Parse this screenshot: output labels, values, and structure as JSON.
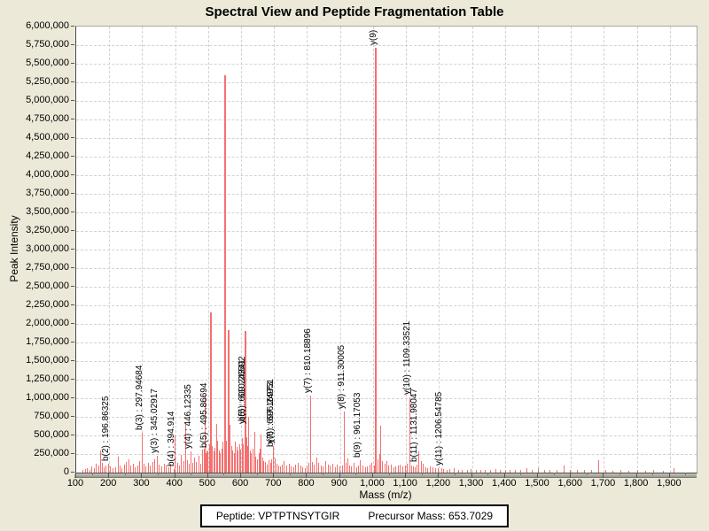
{
  "title": "Spectral View and Peptide Fragmentation Table",
  "footer": {
    "peptide_label": "Peptide: VPTPTNSYTGIR",
    "precursor_label": "Precursor Mass: 653.7029"
  },
  "chart_data": {
    "type": "bar",
    "subtype": "stick-mass-spectrum",
    "title": "Spectral View and Peptide Fragmentation Table",
    "xlabel": "Mass (m/z)",
    "ylabel": "Peak Intensity",
    "xlim": [
      100,
      1981
    ],
    "ylim": [
      0,
      6000000
    ],
    "grid": "dashed",
    "peak_color": "#f47070",
    "background_color": "#ece9d8",
    "plot_background_color": "#ffffff",
    "x_tick_labels": [
      "100",
      "200",
      "300",
      "400",
      "500",
      "600",
      "700",
      "800",
      "900",
      "1,000",
      "1,100",
      "1,200",
      "1,300",
      "1,400",
      "1,500",
      "1,600",
      "1,700",
      "1,800",
      "1,900"
    ],
    "y_tick_labels": [
      "0",
      "250,000",
      "500,000",
      "750,000",
      "1,000,000",
      "1,250,000",
      "1,500,000",
      "1,750,000",
      "2,000,000",
      "2,250,000",
      "2,500,000",
      "2,750,000",
      "3,000,000",
      "3,250,000",
      "3,500,000",
      "3,750,000",
      "4,000,000",
      "4,250,000",
      "4,500,000",
      "4,750,000",
      "5,000,000",
      "5,250,000",
      "5,500,000",
      "5,750,000",
      "6,000,000"
    ],
    "annotated_peaks": [
      {
        "label": "b(2) : 196.86325",
        "mz": 196.86325,
        "intensity": 120000
      },
      {
        "label": "b(3) : 297.94684",
        "mz": 297.94684,
        "intensity": 530000
      },
      {
        "label": "y(3) : 345.02917",
        "mz": 345.02917,
        "intensity": 230000
      },
      {
        "label": "b(4) : 394.914",
        "mz": 394.914,
        "intensity": 45000
      },
      {
        "label": "y(4) : 446.12335",
        "mz": 446.12335,
        "intensity": 290000
      },
      {
        "label": "b(5) : 495.86694",
        "mz": 495.86694,
        "intensity": 300000
      },
      {
        "label": "y(5) : 609.24341",
        "mz": 609.24341,
        "intensity": 620000
      },
      {
        "label": "b(6) : 610.26592",
        "mz": 610.26592,
        "intensity": 660000
      },
      {
        "label": "y(6) : 696.24951",
        "mz": 696.24951,
        "intensity": 360000
      },
      {
        "label": "b(7) : 697.16973",
        "mz": 697.16973,
        "intensity": 310000
      },
      {
        "label": "y(7) : 810.18896",
        "mz": 810.18896,
        "intensity": 1030000
      },
      {
        "label": "y(8) : 911.30005",
        "mz": 911.30005,
        "intensity": 820000
      },
      {
        "label": "b(9) : 961.17053",
        "mz": 961.17053,
        "intensity": 170000
      },
      {
        "label": "y(9) :",
        "mz": 1008.4,
        "intensity": 5720000
      },
      {
        "label": "y(10) : 1109.33521",
        "mz": 1109.33521,
        "intensity": 1010000
      },
      {
        "label": "b(11) : 1131.98047",
        "mz": 1131.98047,
        "intensity": 110000
      },
      {
        "label": "y(11) : 1206.54785",
        "mz": 1206.54785,
        "intensity": 55000
      }
    ],
    "unannotated_peaks": [
      [
        118,
        30000
      ],
      [
        126,
        45000
      ],
      [
        133,
        60000
      ],
      [
        139,
        35000
      ],
      [
        146,
        80000
      ],
      [
        153,
        55000
      ],
      [
        160,
        120000
      ],
      [
        166,
        90000
      ],
      [
        172,
        300000
      ],
      [
        178,
        130000
      ],
      [
        184,
        70000
      ],
      [
        190,
        95000
      ],
      [
        203,
        85000
      ],
      [
        210,
        55000
      ],
      [
        218,
        75000
      ],
      [
        226,
        210000
      ],
      [
        232,
        95000
      ],
      [
        238,
        65000
      ],
      [
        244,
        110000
      ],
      [
        250,
        140000
      ],
      [
        258,
        175000
      ],
      [
        264,
        90000
      ],
      [
        271,
        120000
      ],
      [
        278,
        75000
      ],
      [
        285,
        100000
      ],
      [
        291,
        150000
      ],
      [
        304,
        120000
      ],
      [
        310,
        85000
      ],
      [
        317,
        130000
      ],
      [
        323,
        95000
      ],
      [
        330,
        145000
      ],
      [
        337,
        180000
      ],
      [
        351,
        105000
      ],
      [
        358,
        80000
      ],
      [
        365,
        125000
      ],
      [
        372,
        95000
      ],
      [
        379,
        70000
      ],
      [
        386,
        115000
      ],
      [
        399,
        500000
      ],
      [
        405,
        130000
      ],
      [
        411,
        90000
      ],
      [
        418,
        240000
      ],
      [
        424,
        160000
      ],
      [
        430,
        650000
      ],
      [
        436,
        170000
      ],
      [
        441,
        120000
      ],
      [
        452,
        130000
      ],
      [
        458,
        200000
      ],
      [
        464,
        145000
      ],
      [
        470,
        230000
      ],
      [
        476,
        125000
      ],
      [
        481,
        310000
      ],
      [
        486,
        320000
      ],
      [
        489,
        1050000
      ],
      [
        493,
        260000
      ],
      [
        499,
        280000
      ],
      [
        503,
        380000
      ],
      [
        506,
        300000
      ],
      [
        509,
        2150000
      ],
      [
        512,
        360000
      ],
      [
        516,
        290000
      ],
      [
        520,
        330000
      ],
      [
        524,
        660000
      ],
      [
        528,
        430000
      ],
      [
        532,
        300000
      ],
      [
        536,
        260000
      ],
      [
        540,
        320000
      ],
      [
        544,
        420000
      ],
      [
        548,
        360000
      ],
      [
        551.5,
        5340000
      ],
      [
        555,
        430000
      ],
      [
        559,
        380000
      ],
      [
        563,
        1920000
      ],
      [
        566,
        640000
      ],
      [
        570,
        360000
      ],
      [
        574,
        300000
      ],
      [
        578,
        260000
      ],
      [
        582,
        420000
      ],
      [
        586,
        350000
      ],
      [
        590,
        300000
      ],
      [
        594,
        380000
      ],
      [
        598,
        310000
      ],
      [
        602,
        460000
      ],
      [
        605,
        380000
      ],
      [
        612,
        1900000
      ],
      [
        615,
        480000
      ],
      [
        618,
        360000
      ],
      [
        622,
        750000
      ],
      [
        626,
        300000
      ],
      [
        630,
        260000
      ],
      [
        634,
        320000
      ],
      [
        640,
        550000
      ],
      [
        644,
        220000
      ],
      [
        648,
        180000
      ],
      [
        653,
        260000
      ],
      [
        657,
        320000
      ],
      [
        660,
        510000
      ],
      [
        664,
        200000
      ],
      [
        668,
        160000
      ],
      [
        673,
        140000
      ],
      [
        678,
        110000
      ],
      [
        683,
        170000
      ],
      [
        688,
        130000
      ],
      [
        692,
        180000
      ],
      [
        702,
        190000
      ],
      [
        707,
        120000
      ],
      [
        712,
        100000
      ],
      [
        718,
        85000
      ],
      [
        724,
        110000
      ],
      [
        730,
        150000
      ],
      [
        737,
        95000
      ],
      [
        744,
        120000
      ],
      [
        751,
        80000
      ],
      [
        758,
        70000
      ],
      [
        765,
        110000
      ],
      [
        772,
        130000
      ],
      [
        779,
        90000
      ],
      [
        786,
        75000
      ],
      [
        793,
        60000
      ],
      [
        800,
        100000
      ],
      [
        805,
        130000
      ],
      [
        815,
        140000
      ],
      [
        821,
        110000
      ],
      [
        828,
        200000
      ],
      [
        834,
        130000
      ],
      [
        841,
        95000
      ],
      [
        848,
        85000
      ],
      [
        855,
        160000
      ],
      [
        862,
        110000
      ],
      [
        869,
        90000
      ],
      [
        877,
        120000
      ],
      [
        884,
        75000
      ],
      [
        891,
        105000
      ],
      [
        898,
        80000
      ],
      [
        905,
        95000
      ],
      [
        916,
        130000
      ],
      [
        921,
        190000
      ],
      [
        927,
        95000
      ],
      [
        934,
        85000
      ],
      [
        941,
        130000
      ],
      [
        948,
        75000
      ],
      [
        955,
        90000
      ],
      [
        968,
        95000
      ],
      [
        975,
        70000
      ],
      [
        982,
        85000
      ],
      [
        990,
        110000
      ],
      [
        996,
        130000
      ],
      [
        1002,
        90000
      ],
      [
        1014,
        180000
      ],
      [
        1019,
        250000
      ],
      [
        1023,
        630000
      ],
      [
        1028,
        160000
      ],
      [
        1034,
        120000
      ],
      [
        1040,
        160000
      ],
      [
        1047,
        90000
      ],
      [
        1054,
        110000
      ],
      [
        1061,
        75000
      ],
      [
        1068,
        85000
      ],
      [
        1075,
        95000
      ],
      [
        1082,
        110000
      ],
      [
        1089,
        80000
      ],
      [
        1096,
        90000
      ],
      [
        1103,
        120000
      ],
      [
        1115,
        95000
      ],
      [
        1121,
        80000
      ],
      [
        1127,
        70000
      ],
      [
        1137,
        280000
      ],
      [
        1144,
        150000
      ],
      [
        1151,
        120000
      ],
      [
        1158,
        75000
      ],
      [
        1165,
        60000
      ],
      [
        1172,
        80000
      ],
      [
        1180,
        70000
      ],
      [
        1188,
        55000
      ],
      [
        1196,
        60000
      ],
      [
        1213,
        45000
      ],
      [
        1222,
        40000
      ],
      [
        1232,
        50000
      ],
      [
        1245,
        55000
      ],
      [
        1258,
        35000
      ],
      [
        1270,
        40000
      ],
      [
        1284,
        35000
      ],
      [
        1297,
        45000
      ],
      [
        1311,
        30000
      ],
      [
        1325,
        35000
      ],
      [
        1340,
        30000
      ],
      [
        1355,
        40000
      ],
      [
        1370,
        45000
      ],
      [
        1385,
        30000
      ],
      [
        1400,
        35000
      ],
      [
        1415,
        30000
      ],
      [
        1430,
        40000
      ],
      [
        1447,
        35000
      ],
      [
        1465,
        60000
      ],
      [
        1482,
        40000
      ],
      [
        1500,
        55000
      ],
      [
        1518,
        35000
      ],
      [
        1536,
        30000
      ],
      [
        1556,
        40000
      ],
      [
        1578,
        100000
      ],
      [
        1598,
        35000
      ],
      [
        1618,
        30000
      ],
      [
        1640,
        35000
      ],
      [
        1660,
        30000
      ],
      [
        1682,
        170000
      ],
      [
        1704,
        30000
      ],
      [
        1726,
        25000
      ],
      [
        1750,
        30000
      ],
      [
        1775,
        25000
      ],
      [
        1800,
        30000
      ],
      [
        1825,
        25000
      ],
      [
        1850,
        30000
      ],
      [
        1878,
        25000
      ],
      [
        1912,
        55000
      ]
    ]
  }
}
